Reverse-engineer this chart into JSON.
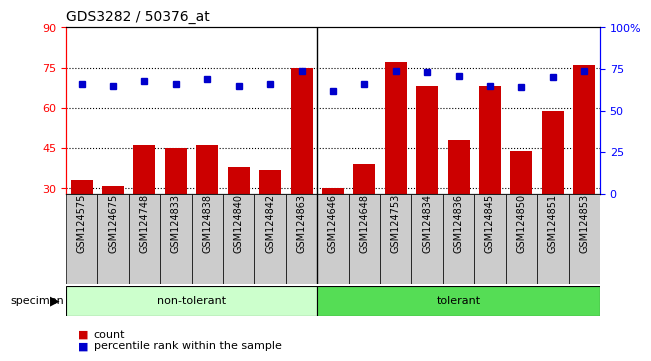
{
  "title": "GDS3282 / 50376_at",
  "categories": [
    "GSM124575",
    "GSM124675",
    "GSM124748",
    "GSM124833",
    "GSM124838",
    "GSM124840",
    "GSM124842",
    "GSM124863",
    "GSM124646",
    "GSM124648",
    "GSM124753",
    "GSM124834",
    "GSM124836",
    "GSM124845",
    "GSM124850",
    "GSM124851",
    "GSM124853"
  ],
  "counts": [
    33,
    31,
    46,
    45,
    46,
    38,
    37,
    75,
    30,
    39,
    77,
    68,
    48,
    68,
    44,
    59,
    76
  ],
  "percentile_ranks": [
    66,
    65,
    68,
    66,
    69,
    65,
    66,
    74,
    62,
    66,
    74,
    73,
    71,
    65,
    64,
    70,
    74
  ],
  "non_tolerant_count": 8,
  "tolerant_count": 9,
  "ylim_left": [
    28,
    90
  ],
  "ylim_right": [
    0,
    100
  ],
  "yticks_left": [
    30,
    45,
    60,
    75,
    90
  ],
  "yticks_right": [
    0,
    25,
    50,
    75,
    100
  ],
  "ytick_labels_right": [
    "0",
    "25",
    "50",
    "75",
    "100%"
  ],
  "bar_color": "#CC0000",
  "dot_color": "#0000CC",
  "non_tolerant_color": "#CCFFCC",
  "tolerant_color": "#55DD55",
  "xtick_box_color": "#CCCCCC",
  "grid_color": "#000000",
  "legend_count_label": "count",
  "legend_pct_label": "percentile rank within the sample",
  "specimen_label": "specimen",
  "non_tolerant_label": "non-tolerant",
  "tolerant_label": "tolerant",
  "title_fontsize": 10,
  "tick_fontsize": 8,
  "xtick_fontsize": 7,
  "label_fontsize": 8
}
